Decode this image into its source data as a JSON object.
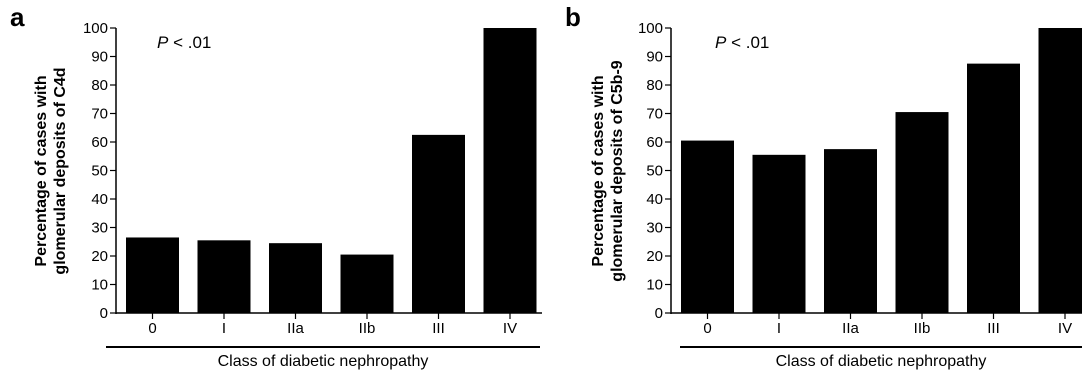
{
  "chart_data": [
    {
      "type": "bar",
      "panel_label": "a",
      "annotation": {
        "italic": "P",
        "rest": " < .01"
      },
      "categories": [
        "0",
        "I",
        "IIa",
        "IIb",
        "III",
        "IV"
      ],
      "values": [
        26.5,
        25.5,
        24.5,
        20.5,
        62.5,
        100
      ],
      "ylabel_lines": [
        "Percentage of cases with",
        "glomerular deposits of C4d"
      ],
      "xlabel": "Class of diabetic nephropathy",
      "ylim": [
        0,
        100
      ],
      "yticks": [
        0,
        10,
        20,
        30,
        40,
        50,
        60,
        70,
        80,
        90,
        100
      ],
      "bar_color": "#000000",
      "grid": false
    },
    {
      "type": "bar",
      "panel_label": "b",
      "annotation": {
        "italic": "P",
        "rest": " < .01"
      },
      "categories": [
        "0",
        "I",
        "IIa",
        "IIb",
        "III",
        "IV"
      ],
      "values": [
        60.5,
        55.5,
        57.5,
        70.5,
        87.5,
        100
      ],
      "ylabel_lines": [
        "Percentage of cases with",
        "glomerular deposits of C5b-9"
      ],
      "xlabel": "Class of diabetic nephropathy",
      "ylim": [
        0,
        100
      ],
      "yticks": [
        0,
        10,
        20,
        30,
        40,
        50,
        60,
        70,
        80,
        90,
        100
      ],
      "bar_color": "#000000",
      "grid": false
    }
  ]
}
